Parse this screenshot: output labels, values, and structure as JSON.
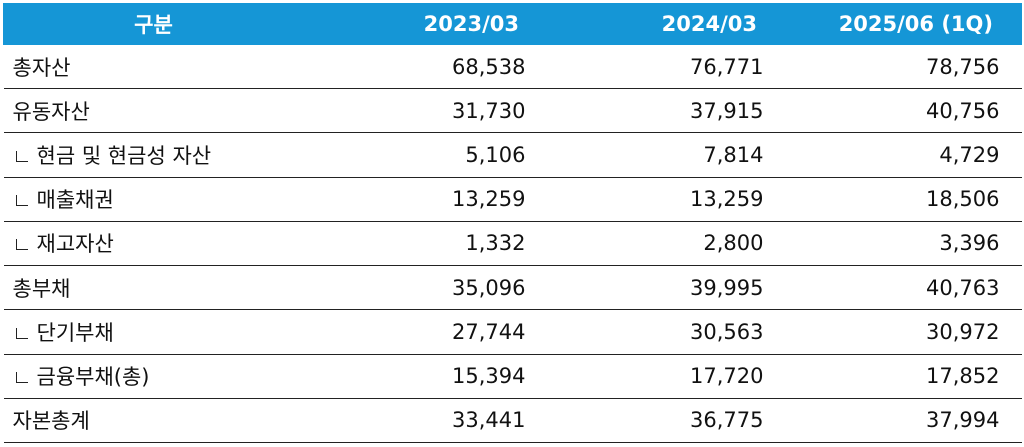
{
  "table": {
    "headers": [
      "구분",
      "2023/03",
      "2024/03",
      "2025/06 (1Q)"
    ],
    "rows": [
      {
        "label": "총자산",
        "sub": false,
        "values": [
          "68,538",
          "76,771",
          "78,756"
        ]
      },
      {
        "label": "유동자산",
        "sub": false,
        "values": [
          "31,730",
          "37,915",
          "40,756"
        ]
      },
      {
        "label": "현금 및 현금성 자산",
        "sub": true,
        "values": [
          "5,106",
          "7,814",
          "4,729"
        ]
      },
      {
        "label": "매출채권",
        "sub": true,
        "values": [
          "13,259",
          "13,259",
          "18,506"
        ]
      },
      {
        "label": "재고자산",
        "sub": true,
        "values": [
          "1,332",
          "2,800",
          "3,396"
        ]
      },
      {
        "label": "총부채",
        "sub": false,
        "values": [
          "35,096",
          "39,995",
          "40,763"
        ]
      },
      {
        "label": "단기부채",
        "sub": true,
        "values": [
          "27,744",
          "30,563",
          "30,972"
        ]
      },
      {
        "label": "금융부채(총)",
        "sub": true,
        "values": [
          "15,394",
          "17,720",
          "17,852"
        ]
      },
      {
        "label": "자본총계",
        "sub": false,
        "values": [
          "33,441",
          "36,775",
          "37,994"
        ]
      }
    ]
  },
  "colors": {
    "header_bg": "#1596d6",
    "header_text": "#ffffff",
    "row_border": "#222222"
  },
  "icons": {
    "sub_row_marker": "corner-bracket-icon"
  }
}
